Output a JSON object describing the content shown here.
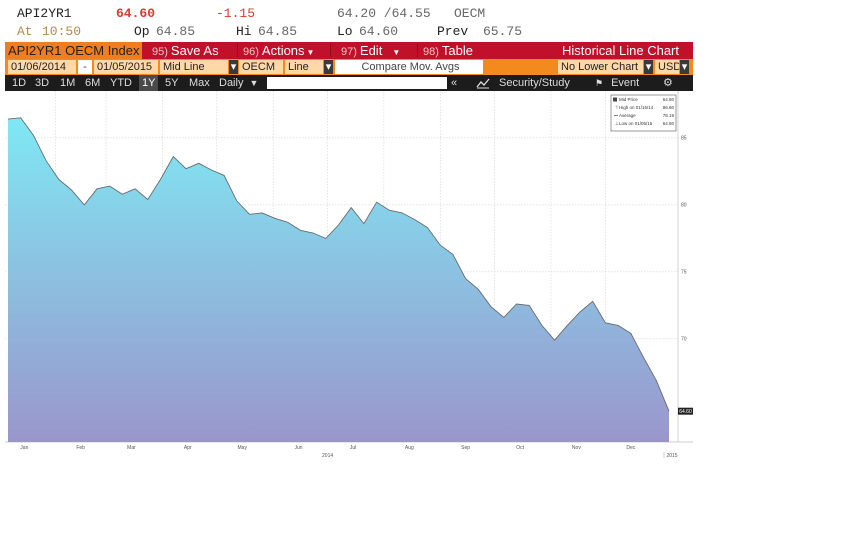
{
  "quote": {
    "ticker": "API2YR1",
    "last": "64.60",
    "change": "-1.15",
    "bid_ask": "64.20 /64.55",
    "source": "OECM",
    "at_label": "At",
    "at_time": "10:50",
    "open_label": "Op",
    "open": "64.85",
    "high_label": "Hi",
    "high": "64.85",
    "low_label": "Lo",
    "low": "64.60",
    "prev_label": "Prev",
    "prev": "65.75"
  },
  "titlebar": {
    "security": "API2YR1 OECM Index",
    "save_num": "95)",
    "save_label": "Save As",
    "actions_num": "96)",
    "actions_label": "Actions",
    "edit_num": "97)",
    "edit_label": "Edit",
    "table_num": "98)",
    "table_label": "Table",
    "chart_title": "Historical Line Chart"
  },
  "params": {
    "start_date": "01/06/2014",
    "dash": "-",
    "end_date": "01/05/2015",
    "field": "Mid Line",
    "source": "OECM",
    "type": "Line",
    "compare": "Compare Mov. Avgs",
    "lower_chart": "No Lower Chart",
    "currency": "USD"
  },
  "toolbar": {
    "periods": [
      "1D",
      "3D",
      "1M",
      "6M",
      "YTD",
      "1Y",
      "5Y",
      "Max"
    ],
    "active_period": "1Y",
    "frequency": "Daily",
    "security_study": "Security/Study",
    "event": "Event"
  },
  "legend": {
    "mid_label": "Mid Price",
    "mid_value": "64.60",
    "high_label": "High on 01/16/14",
    "high_value": "86.60",
    "avg_label": "Average",
    "avg_value": "78.19",
    "low_label": "Low on 01/05/15",
    "low_value": "64.60"
  },
  "colors": {
    "title_bar": "#c0102a",
    "param_bar": "#f28a1e",
    "area_top": "#7fe8f4",
    "area_bottom": "#9a96cc"
  },
  "chart_data": {
    "type": "area",
    "series": [
      {
        "name": "Mid Price",
        "x": [
          "2014-01-06",
          "2014-01-13",
          "2014-01-20",
          "2014-01-27",
          "2014-02-03",
          "2014-02-10",
          "2014-02-17",
          "2014-02-24",
          "2014-03-03",
          "2014-03-10",
          "2014-03-17",
          "2014-03-24",
          "2014-03-31",
          "2014-04-07",
          "2014-04-14",
          "2014-04-21",
          "2014-04-28",
          "2014-05-05",
          "2014-05-12",
          "2014-05-19",
          "2014-05-26",
          "2014-06-02",
          "2014-06-09",
          "2014-06-16",
          "2014-06-23",
          "2014-06-30",
          "2014-07-07",
          "2014-07-14",
          "2014-07-21",
          "2014-07-28",
          "2014-08-04",
          "2014-08-11",
          "2014-08-18",
          "2014-08-25",
          "2014-09-01",
          "2014-09-08",
          "2014-09-15",
          "2014-09-22",
          "2014-09-29",
          "2014-10-06",
          "2014-10-13",
          "2014-10-20",
          "2014-10-27",
          "2014-11-03",
          "2014-11-10",
          "2014-11-17",
          "2014-11-24",
          "2014-12-01",
          "2014-12-08",
          "2014-12-15",
          "2014-12-22",
          "2014-12-29",
          "2015-01-05"
        ],
        "values": [
          86.4,
          86.5,
          85.2,
          83.3,
          81.9,
          81.1,
          80.0,
          81.2,
          81.4,
          80.8,
          81.2,
          80.4,
          81.9,
          83.6,
          82.7,
          83.1,
          82.6,
          82.2,
          80.3,
          79.3,
          79.4,
          79.0,
          78.7,
          78.1,
          77.9,
          77.5,
          78.5,
          79.8,
          78.6,
          80.2,
          79.6,
          79.4,
          78.9,
          78.3,
          77.0,
          76.3,
          74.5,
          73.7,
          72.4,
          71.6,
          72.6,
          72.5,
          71.0,
          69.9,
          71.0,
          72.0,
          72.8,
          71.2,
          71.0,
          70.4,
          68.6,
          66.9,
          64.6
        ]
      }
    ],
    "x_tick_labels": [
      "Jan",
      "Feb",
      "Mar",
      "Apr",
      "May",
      "Jun",
      "Jul",
      "Aug",
      "Sep",
      "Oct",
      "Nov",
      "Dec"
    ],
    "x_year_labels": [
      "2014",
      "2015"
    ],
    "y_tick_labels": [
      "85",
      "80",
      "75",
      "70"
    ],
    "ylim": [
      62.3,
      88.5
    ],
    "last_value_label": "64.60",
    "grid": true,
    "legend_position": "top-right"
  }
}
